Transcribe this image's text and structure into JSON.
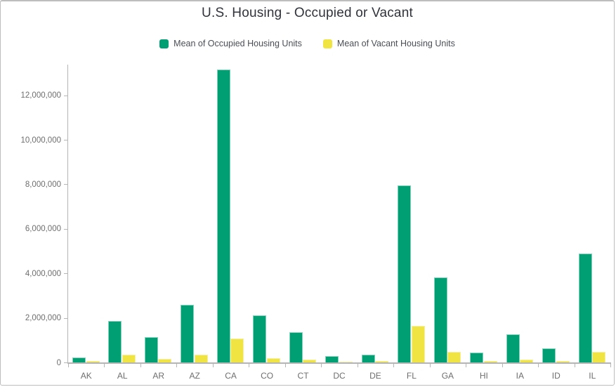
{
  "chart_data": {
    "type": "bar",
    "title": "U.S. Housing - Occupied or Vacant",
    "categories": [
      "AK",
      "AL",
      "AR",
      "AZ",
      "CA",
      "CO",
      "CT",
      "DC",
      "DE",
      "FL",
      "GA",
      "HI",
      "IA",
      "ID",
      "IL"
    ],
    "series": [
      {
        "name": "Mean of Occupied Housing Units",
        "color": "#009E73",
        "border_color": "#7fd4b9",
        "values": [
          220000,
          1870000,
          1130000,
          2600000,
          13150000,
          2110000,
          1370000,
          270000,
          340000,
          7950000,
          3820000,
          440000,
          1260000,
          620000,
          4900000
        ]
      },
      {
        "name": "Mean of Vacant Housing Units",
        "color": "#F0E442",
        "border_color": "#f6efa0",
        "values": [
          50000,
          350000,
          160000,
          350000,
          1060000,
          200000,
          130000,
          30000,
          60000,
          1630000,
          470000,
          60000,
          120000,
          70000,
          460000
        ]
      }
    ],
    "xlabel": "",
    "ylabel": "",
    "ylim": [
      0,
      13400000
    ],
    "yticks": [
      0,
      2000000,
      4000000,
      6000000,
      8000000,
      10000000,
      12000000
    ],
    "ytick_labels": [
      "0",
      "2,000,000",
      "4,000,000",
      "6,000,000",
      "8,000,000",
      "10,000,000",
      "12,000,000"
    ],
    "grid": false,
    "legend_position": "top",
    "axis_color": "#b5b5b5",
    "tick_label_color": "#6e6e6e"
  }
}
